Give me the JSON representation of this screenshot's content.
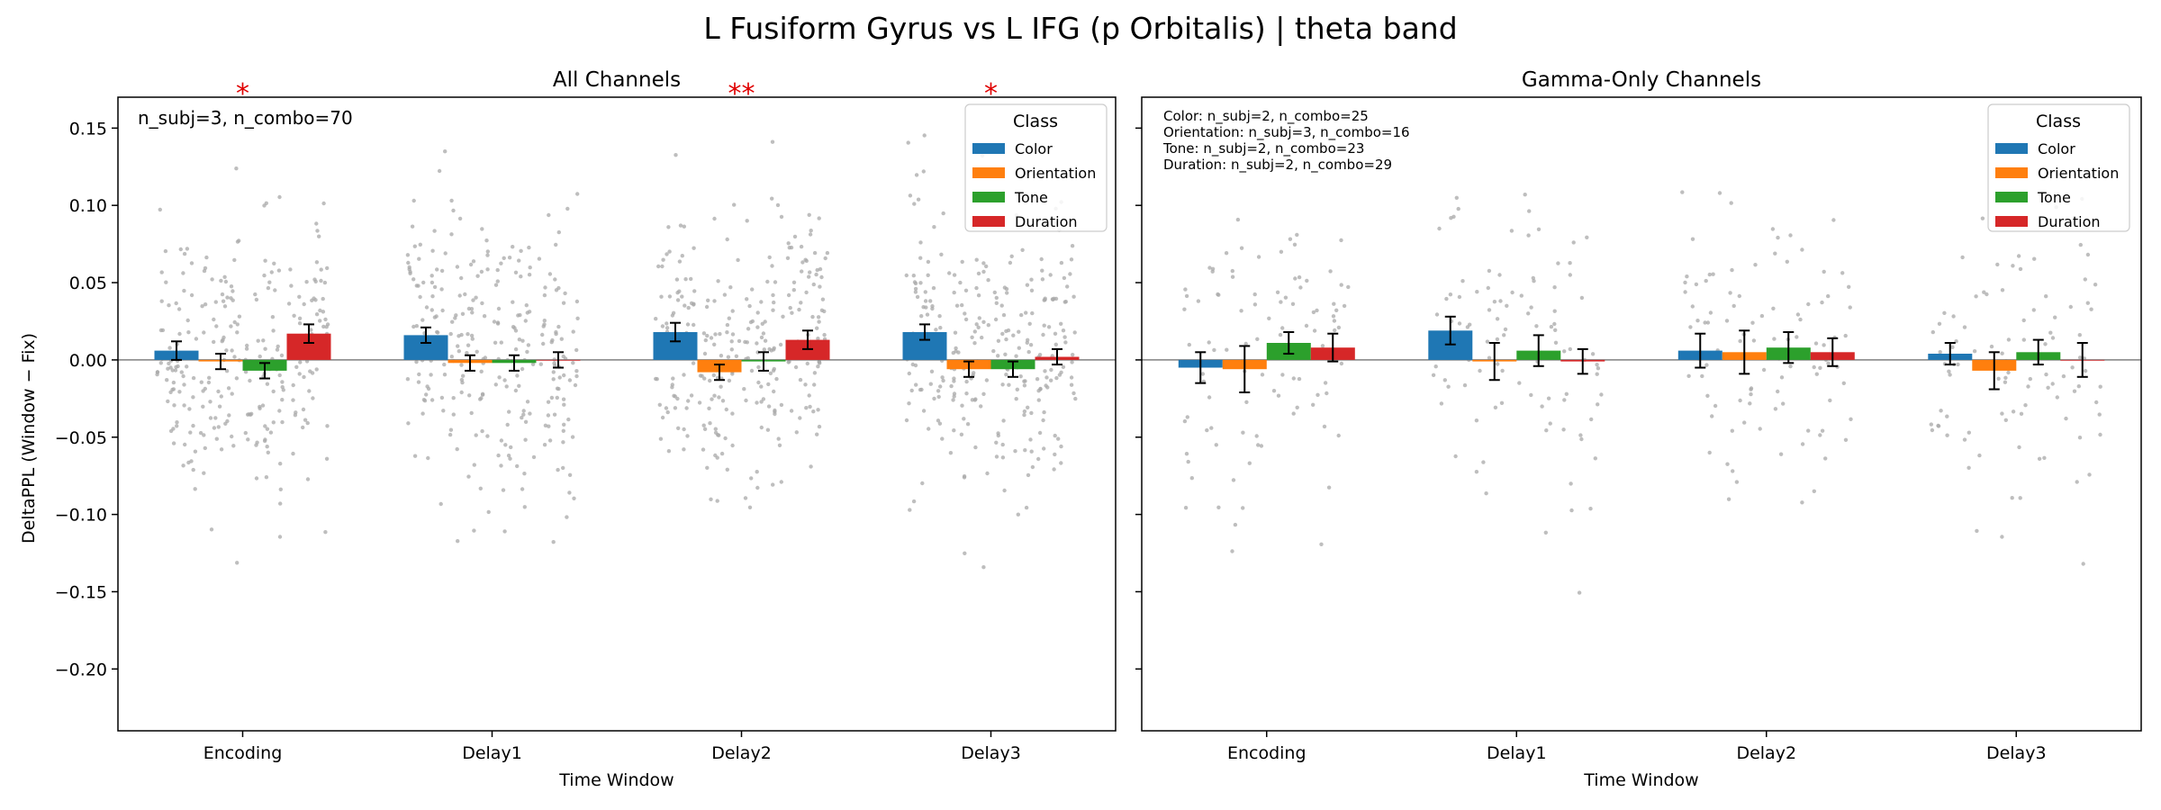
{
  "suptitle": "L Fusiform Gyrus vs L IFG (p Orbitalis)  |  theta band",
  "colors": {
    "Color": "#1f77b4",
    "Orientation": "#ff7f0e",
    "Tone": "#2ca02c",
    "Duration": "#d62728",
    "star": "#e00000",
    "scatter": "#a8a8a8"
  },
  "chart_data": [
    {
      "type": "bar",
      "title": "All Channels",
      "xlabel": "Time Window",
      "ylabel": "DeltaPPL (Window − Fix)",
      "ylim": [
        -0.24,
        0.17
      ],
      "yticks": [
        0.15,
        0.1,
        0.05,
        0.0,
        -0.05,
        -0.1,
        -0.15,
        -0.2
      ],
      "ytick_labels": [
        "0.15",
        "0.10",
        "0.05",
        "0.00",
        "−0.05",
        "−0.10",
        "−0.15",
        "−0.20"
      ],
      "categories": [
        "Encoding",
        "Delay1",
        "Delay2",
        "Delay3"
      ],
      "legend": {
        "title": "Class",
        "position": "top-right"
      },
      "annotation": "n_subj=3, n_combo=70",
      "significance": [
        {
          "category": "Encoding",
          "label": "*"
        },
        {
          "category": "Delay2",
          "label": "**"
        },
        {
          "category": "Delay3",
          "label": "*"
        }
      ],
      "series": [
        {
          "name": "Color",
          "values": [
            0.006,
            0.016,
            0.018,
            0.018
          ],
          "errors": [
            0.006,
            0.005,
            0.006,
            0.005
          ]
        },
        {
          "name": "Orientation",
          "values": [
            -0.001,
            -0.002,
            -0.008,
            -0.006
          ],
          "errors": [
            0.005,
            0.005,
            0.005,
            0.005
          ]
        },
        {
          "name": "Tone",
          "values": [
            -0.007,
            -0.002,
            -0.001,
            -0.006
          ],
          "errors": [
            0.005,
            0.005,
            0.006,
            0.005
          ]
        },
        {
          "name": "Duration",
          "values": [
            0.017,
            0.0,
            0.013,
            0.002
          ],
          "errors": [
            0.006,
            0.005,
            0.006,
            0.005
          ]
        }
      ],
      "scatter": {
        "n_per_group": 70,
        "spread": 0.045
      }
    },
    {
      "type": "bar",
      "title": "Gamma-Only Channels",
      "xlabel": "Time Window",
      "ylabel": "",
      "ylim": [
        -0.24,
        0.17
      ],
      "categories": [
        "Encoding",
        "Delay1",
        "Delay2",
        "Delay3"
      ],
      "legend": {
        "title": "Class",
        "position": "top-right"
      },
      "annotation_lines": [
        "Color: n_subj=2, n_combo=25",
        "Orientation: n_subj=3, n_combo=16",
        "Tone: n_subj=2, n_combo=23",
        "Duration: n_subj=2, n_combo=29"
      ],
      "series": [
        {
          "name": "Color",
          "values": [
            -0.005,
            0.019,
            0.006,
            0.004
          ],
          "errors": [
            0.01,
            0.009,
            0.011,
            0.007
          ]
        },
        {
          "name": "Orientation",
          "values": [
            -0.006,
            -0.001,
            0.005,
            -0.007
          ],
          "errors": [
            0.015,
            0.012,
            0.014,
            0.012
          ]
        },
        {
          "name": "Tone",
          "values": [
            0.011,
            0.006,
            0.008,
            0.005
          ],
          "errors": [
            0.007,
            0.01,
            0.01,
            0.008
          ]
        },
        {
          "name": "Duration",
          "values": [
            0.008,
            -0.001,
            0.005,
            0.0
          ],
          "errors": [
            0.009,
            0.008,
            0.009,
            0.011
          ]
        }
      ],
      "scatter": {
        "n_per_group": 25,
        "spread": 0.045
      }
    }
  ]
}
